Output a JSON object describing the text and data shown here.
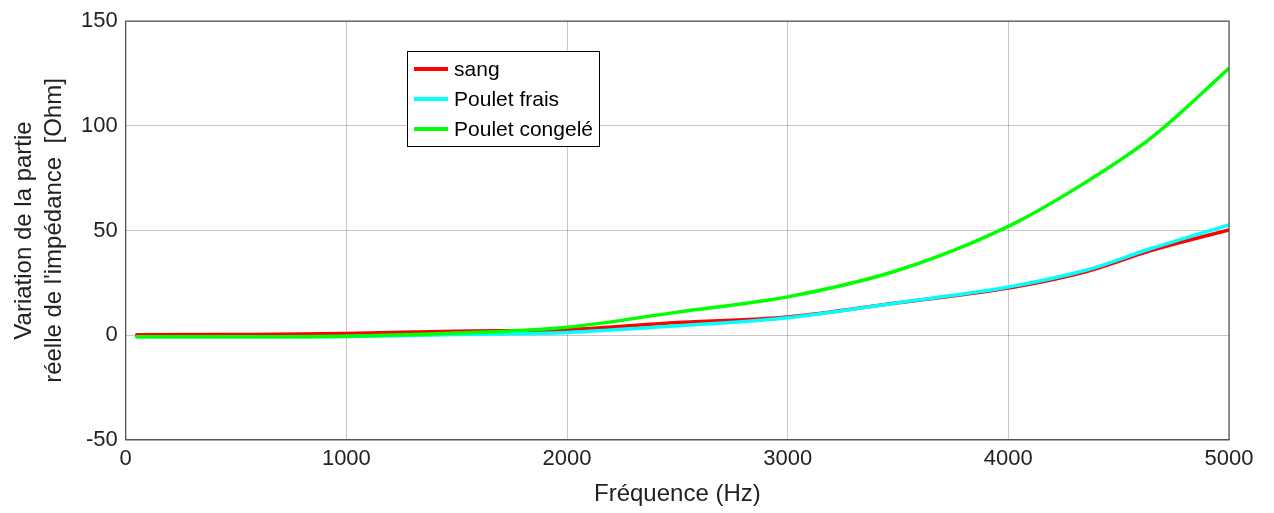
{
  "chart_data": {
    "type": "line",
    "xlabel": "Fréquence (Hz)",
    "ylabel": "Variation de la partie\nréelle de l'impédance  [Ohm]",
    "x": [
      50,
      500,
      1000,
      1500,
      2000,
      2500,
      3000,
      3500,
      4000,
      4350,
      4650,
      5000
    ],
    "series": [
      {
        "name": "sang",
        "color": "#ff0000",
        "values": [
          0.2,
          0.3,
          0.8,
          1.9,
          2.6,
          6,
          8.7,
          15.5,
          22.5,
          30.3,
          40.5,
          50.3
        ]
      },
      {
        "name": "Poulet frais",
        "color": "#00ffff",
        "values": [
          -0.8,
          -0.8,
          -0.6,
          0.3,
          1.3,
          4.5,
          8.3,
          15.5,
          23,
          31,
          41.5,
          52.7
        ]
      },
      {
        "name": "Poulet congelé",
        "color": "#00ff00",
        "values": [
          -0.8,
          -0.8,
          -0.5,
          1.0,
          3.8,
          11,
          18.3,
          31,
          52,
          73,
          94.5,
          127.5
        ]
      }
    ],
    "xlim": [
      0,
      5000
    ],
    "xticks": [
      0,
      1000,
      2000,
      3000,
      4000,
      5000
    ],
    "ylim": [
      -50,
      150
    ],
    "yticks": [
      -50,
      0,
      50,
      100,
      150
    ],
    "grid": true,
    "legend": "top left",
    "marker": "none",
    "line_style": "solid"
  }
}
